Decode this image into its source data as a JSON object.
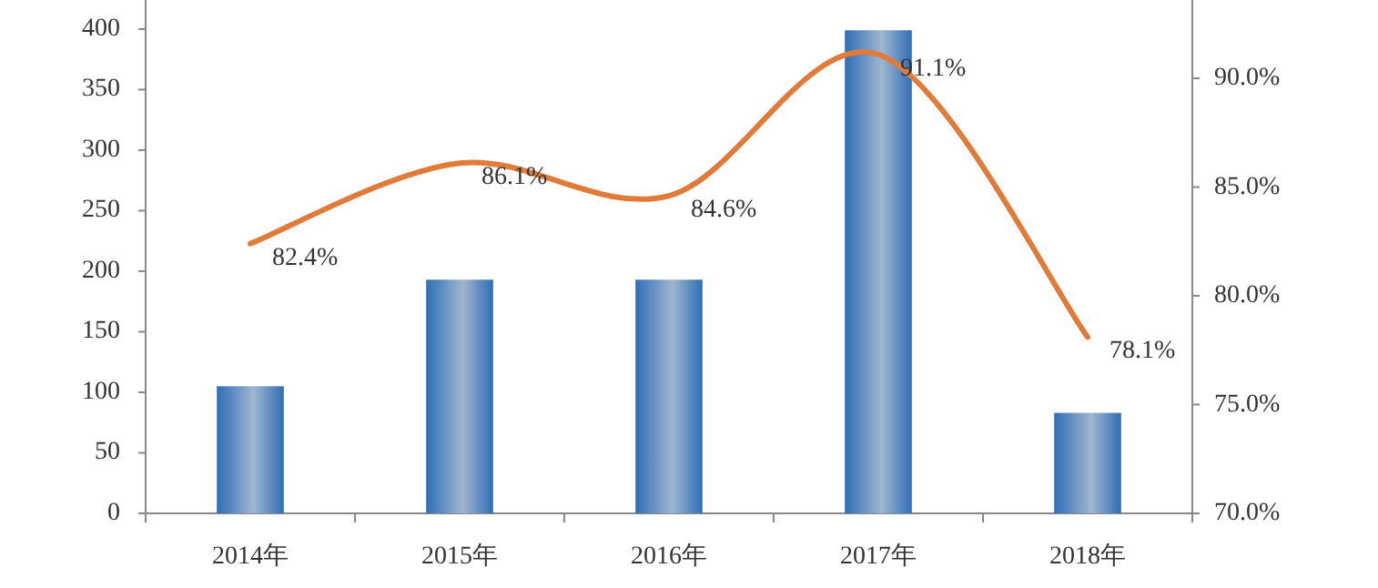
{
  "chart_data": {
    "type": "bar",
    "categories": [
      "2014年",
      "2015年",
      "2016年",
      "2017年",
      "2018年"
    ],
    "series": [
      {
        "color": "#2f6eb5",
        "values": [
          105,
          193,
          193,
          399,
          83
        ]
      },
      {
        "type": "line",
        "axis": "y2",
        "color": "#e07b39",
        "values": [
          82.4,
          86.1,
          84.6,
          91.1,
          78.1
        ],
        "value_labels": [
          "82.4%",
          "86.1%",
          "84.6%",
          "91.1%",
          "78.1%"
        ]
      }
    ],
    "ylim": [
      0,
      424
    ],
    "yticks": [
      0,
      50,
      100,
      150,
      200,
      250,
      300,
      350,
      400
    ],
    "y2lim": [
      70,
      93.6
    ],
    "y2ticks": [
      {
        "value": 70,
        "label": "70.0%"
      },
      {
        "value": 75,
        "label": "75.0%"
      },
      {
        "value": 80,
        "label": "80.0%"
      },
      {
        "value": 85,
        "label": "85.0%"
      },
      {
        "value": 90,
        "label": "90.0%"
      }
    ]
  }
}
